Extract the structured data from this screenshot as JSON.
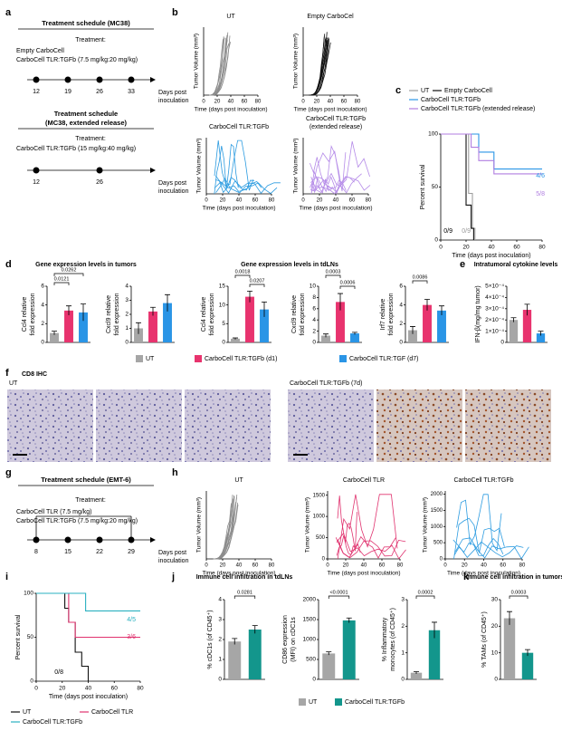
{
  "panel_labels": [
    "a",
    "b",
    "c",
    "d",
    "e",
    "f",
    "g",
    "h",
    "i",
    "j",
    "k"
  ],
  "schedule_mc38": {
    "title": "Treatment schedule (MC38)",
    "treatment": "Treatment:",
    "groups": [
      "Empty CarboCell",
      "CarboCell TLR:TGFb (7.5 mg/kg:20 mg/kg)"
    ],
    "days": [
      "12",
      "19",
      "26",
      "33"
    ],
    "axis": [
      "Days post",
      "inoculation"
    ]
  },
  "schedule_mc38_er": {
    "title": "Treatment schedule",
    "subtitle": "(MC38, extended release)",
    "treatment": "Treatment:",
    "groups": [
      "CarboCell TLR:TGFb (15 mg/kg:40 mg/kg)"
    ],
    "days": [
      "12",
      "26"
    ],
    "axis": [
      "Days post",
      "inoculation"
    ]
  },
  "schedule_emt6": {
    "title": "Treatment schedule (EMT-6)",
    "treatment": "Treatment:",
    "groups": [
      "CarboCell TLR (7.5 mg/kg)",
      "CarboCell TLR:TGFb (7.5 mg/kg:20 mg/kg)"
    ],
    "days": [
      "8",
      "15",
      "22",
      "29"
    ],
    "axis": [
      "Days post",
      "inoculation"
    ]
  },
  "titles": {
    "d_tumors": "Gene expression levels in tumors",
    "d_tdlns": "Gene expression levels in tdLNs",
    "e": "Intratumoral cytokine levels",
    "f": "CD8 IHC",
    "f_ut": "UT",
    "f_treated": "CarboCell TLR:TGFb (7d)",
    "j": "Immune cell infiltration in tdLNs",
    "k": "Immune cell infiltration in tumors"
  },
  "legend_d": [
    {
      "name": "UT",
      "color": "#a6a6a6"
    },
    {
      "name": "CarboCell TLR:TGFb (d1)",
      "color": "#e8336e"
    },
    {
      "name": "CarboCell TLR:TGF (d7)",
      "color": "#2a95e6"
    }
  ],
  "legend_j": [
    {
      "name": "UT",
      "color": "#a6a6a6"
    },
    {
      "name": "CarboCell TLR:TGFb",
      "color": "#13968c"
    }
  ],
  "growth": [
    {
      "title": [
        "UT"
      ],
      "ylabel": "Tumor Volume (mm³)",
      "xlabel": "Time (days post inoculation)",
      "xlim": [
        0,
        80
      ],
      "xticks": [
        0,
        20,
        40,
        60,
        80
      ],
      "color": "#8c8c8c"
    },
    {
      "title": [
        "Empty CarboCel"
      ],
      "ylabel": "Tumor Volume (mm³)",
      "xlabel": "Time (days post inoculation)",
      "xlim": [
        0,
        80
      ],
      "xticks": [
        0,
        20,
        40,
        60,
        80
      ],
      "color": "#111111"
    },
    {
      "title": [
        "CarboCell TLR:TGFb"
      ],
      "ylabel": "Tumor Volume (mm³)",
      "xlabel": "Time (days post inoculation)",
      "xlim": [
        0,
        80
      ],
      "xticks": [
        0,
        20,
        40,
        60,
        80
      ],
      "color": "#2b9be0"
    },
    {
      "title": [
        "CarboCell TLR:TGFb",
        "(extended release)"
      ],
      "ylabel": "Tumor Volume (mm³)",
      "xlabel": "Time (days post inoculation)",
      "xlim": [
        0,
        80
      ],
      "xticks": [
        0,
        20,
        40,
        60,
        80
      ],
      "color": "#b58be8"
    },
    {
      "title": [
        "UT"
      ],
      "ylabel": "Tumor Volume (mm³)",
      "xlabel": "Time (days post inoculation)",
      "xlim": [
        0,
        80
      ],
      "xticks": [
        0,
        20,
        40,
        60,
        80
      ],
      "color": "#8c8c8c"
    },
    {
      "title": [
        "CarboCell TLR"
      ],
      "ylabel": "Tumor Volume (mm³)",
      "xlabel": "Time (days post inoculation)",
      "xlim": [
        0,
        80
      ],
      "xticks": [
        0,
        20,
        40,
        60,
        80
      ],
      "ylim": [
        0,
        1600
      ],
      "yticks": [
        0,
        500,
        1000,
        1500
      ],
      "color": "#e0336f"
    },
    {
      "title": [
        "CarboCell TLR:TGFb"
      ],
      "ylabel": "Tumor Volume (mm³)",
      "xlabel": "Time (days post inoculation)",
      "xlim": [
        0,
        80
      ],
      "xticks": [
        0,
        20,
        40,
        60,
        80
      ],
      "ylim": [
        0,
        2100
      ],
      "yticks": [
        0,
        500,
        1000,
        1500,
        2000
      ],
      "color": "#2b9be0"
    }
  ],
  "chart_data": [
    {
      "type": "line",
      "ylabel": "Percent survival",
      "xlabel": "Time (days post inoculation)",
      "xlim": [
        0,
        80
      ],
      "ylim": [
        0,
        100
      ],
      "xticks": [
        0,
        20,
        40,
        60,
        80
      ],
      "yticks": [
        0,
        50,
        100
      ],
      "series": [
        {
          "name": "UT",
          "color": "#9e9e9e",
          "x": [
            0,
            22,
            22,
            25,
            25,
            27,
            27
          ],
          "values": [
            100,
            100,
            44,
            44,
            11,
            11,
            0
          ]
        },
        {
          "name": "Empty CarboCell",
          "color": "#111111",
          "x": [
            0,
            20,
            20,
            24,
            24,
            26,
            26
          ],
          "values": [
            100,
            100,
            33,
            33,
            11,
            11,
            0
          ]
        },
        {
          "name": "CarboCell TLR:TGFb",
          "color": "#2a95e6",
          "x": [
            0,
            30,
            30,
            42,
            42,
            80
          ],
          "values": [
            100,
            100,
            83,
            83,
            67,
            67
          ]
        },
        {
          "name": "CarboCell TLR:TGFb (extended release)",
          "color": "#b07ee0",
          "x": [
            0,
            24,
            24,
            30,
            30,
            42,
            42,
            80
          ],
          "values": [
            100,
            100,
            87.5,
            87.5,
            75,
            75,
            62.5,
            62.5
          ]
        }
      ],
      "annotations": [
        "4/6",
        "5/8",
        "0/9",
        "0/9"
      ]
    },
    {
      "type": "bar",
      "ylabel": [
        "Ccl4 relative",
        "fold expression"
      ],
      "ylim": [
        0,
        6
      ],
      "yticks": [
        0,
        2,
        4,
        6
      ],
      "colors": [
        "#a6a6a6",
        "#e8336e",
        "#2a95e6"
      ],
      "values": [
        1.0,
        3.4,
        3.2
      ],
      "errors": [
        0.2,
        0.5,
        0.9
      ],
      "annotations": [
        "0.0121",
        "0.0262"
      ]
    },
    {
      "type": "bar",
      "ylabel": [
        "Cxcl9 relative",
        "fold expression"
      ],
      "ylim": [
        0,
        4
      ],
      "yticks": [
        0,
        1,
        2,
        3,
        4
      ],
      "colors": [
        "#a6a6a6",
        "#e8336e",
        "#2a95e6"
      ],
      "values": [
        1.0,
        2.2,
        2.8
      ],
      "errors": [
        0.4,
        0.3,
        0.6
      ],
      "annotations": []
    },
    {
      "type": "bar",
      "ylabel": [
        "Ccl4 relative",
        "fold expression"
      ],
      "ylim": [
        0,
        15
      ],
      "yticks": [
        0,
        5,
        10,
        15
      ],
      "colors": [
        "#a6a6a6",
        "#e8336e",
        "#2a95e6"
      ],
      "values": [
        1.0,
        12.2,
        8.8
      ],
      "errors": [
        0.2,
        1.5,
        2.0
      ],
      "annotations": [
        "0.0018",
        "0.0207"
      ]
    },
    {
      "type": "bar",
      "ylabel": [
        "Cxcl9 relative",
        "fold expression"
      ],
      "ylim": [
        0,
        10
      ],
      "yticks": [
        0,
        2,
        4,
        6,
        8,
        10
      ],
      "colors": [
        "#a6a6a6",
        "#e8336e",
        "#2a95e6"
      ],
      "values": [
        1.2,
        7.2,
        1.6
      ],
      "errors": [
        0.3,
        1.5,
        0.2
      ],
      "annotations": [
        "0.0003",
        "0.0006"
      ]
    },
    {
      "type": "bar",
      "ylabel": [
        "Irf7 relative",
        "fold expression"
      ],
      "ylim": [
        0,
        6
      ],
      "yticks": [
        0,
        2,
        4,
        6
      ],
      "colors": [
        "#a6a6a6",
        "#e8336e",
        "#2a95e6"
      ],
      "values": [
        1.3,
        4.0,
        3.4
      ],
      "errors": [
        0.4,
        0.6,
        0.5
      ],
      "annotations": [
        "0.0086"
      ]
    },
    {
      "type": "bar",
      "ylabel": [
        "IFN-β(mg/mg tumor)"
      ],
      "ylim": [
        0,
        0.0005
      ],
      "yticks": [
        0,
        {
          "value": 0.0001,
          "label": "1×10⁻⁴"
        },
        {
          "value": 0.0002,
          "label": "2×10⁻⁴"
        },
        {
          "value": 0.0003,
          "label": "3×10⁻⁴"
        },
        {
          "value": 0.0004,
          "label": "4×10⁻⁴"
        },
        {
          "value": 0.0005,
          "label": "5×10⁻⁴"
        }
      ],
      "colors": [
        "#a6a6a6",
        "#e8336e",
        "#2a95e6"
      ],
      "values": [
        0.0002,
        0.00029,
        8e-05
      ],
      "errors": [
        2e-05,
        5e-05,
        2e-05
      ],
      "annotations": []
    },
    {
      "type": "line",
      "ylabel": "Percent survival",
      "xlabel": "Time (days post inoculation)",
      "xlim": [
        0,
        80
      ],
      "ylim": [
        0,
        100
      ],
      "xticks": [
        0,
        20,
        40,
        60,
        80
      ],
      "yticks": [
        0,
        50,
        100
      ],
      "series": [
        {
          "name": "UT",
          "color": "#111111",
          "x": [
            0,
            22,
            22,
            25,
            25,
            30,
            30,
            35,
            35,
            40,
            40
          ],
          "values": [
            100,
            100,
            83,
            83,
            67,
            67,
            33,
            33,
            17,
            17,
            0
          ]
        },
        {
          "name": "CarboCell TLR",
          "color": "#e0336f",
          "x": [
            0,
            25,
            25,
            30,
            30,
            80
          ],
          "values": [
            100,
            100,
            67,
            67,
            50,
            50
          ]
        },
        {
          "name": "CarboCell TLR:TGFb",
          "color": "#2ab0c0",
          "x": [
            0,
            38,
            38,
            80
          ],
          "values": [
            100,
            100,
            80,
            80
          ]
        }
      ],
      "annotations": [
        "4/5",
        "3/6",
        "0/8"
      ]
    },
    {
      "type": "bar",
      "ylabel": [
        "% cDC1s (of CD45⁺)"
      ],
      "ylim": [
        0,
        4
      ],
      "yticks": [
        0,
        1,
        2,
        3,
        4
      ],
      "colors": [
        "#a6a6a6",
        "#13968c"
      ],
      "values": [
        1.9,
        2.5
      ],
      "errors": [
        0.15,
        0.2
      ],
      "annotations": [
        "0.0281"
      ]
    },
    {
      "type": "bar",
      "ylabel": [
        "CD86 expression",
        "(MFI) on cDC1s"
      ],
      "ylim": [
        0,
        2000
      ],
      "yticks": [
        0,
        500,
        1000,
        1500,
        2000
      ],
      "colors": [
        "#a6a6a6",
        "#13968c"
      ],
      "values": [
        650,
        1480
      ],
      "errors": [
        40,
        60
      ],
      "annotations": [
        "<0.0001"
      ]
    },
    {
      "type": "bar",
      "ylabel": [
        "% Inflammatory",
        "monocytes (of CD45⁺)"
      ],
      "ylim": [
        0,
        3
      ],
      "yticks": [
        0,
        1,
        2,
        3
      ],
      "colors": [
        "#a6a6a6",
        "#13968c"
      ],
      "values": [
        0.25,
        1.85
      ],
      "errors": [
        0.04,
        0.3
      ],
      "annotations": [
        "0.0002"
      ]
    },
    {
      "type": "bar",
      "ylabel": [
        "% TAMs (of CD45⁺)"
      ],
      "ylim": [
        0,
        30
      ],
      "yticks": [
        0,
        10,
        20,
        30
      ],
      "colors": [
        "#a6a6a6",
        "#13968c"
      ],
      "values": [
        23,
        10
      ],
      "errors": [
        2.5,
        1.2
      ],
      "annotations": [
        "0.0003"
      ]
    }
  ]
}
